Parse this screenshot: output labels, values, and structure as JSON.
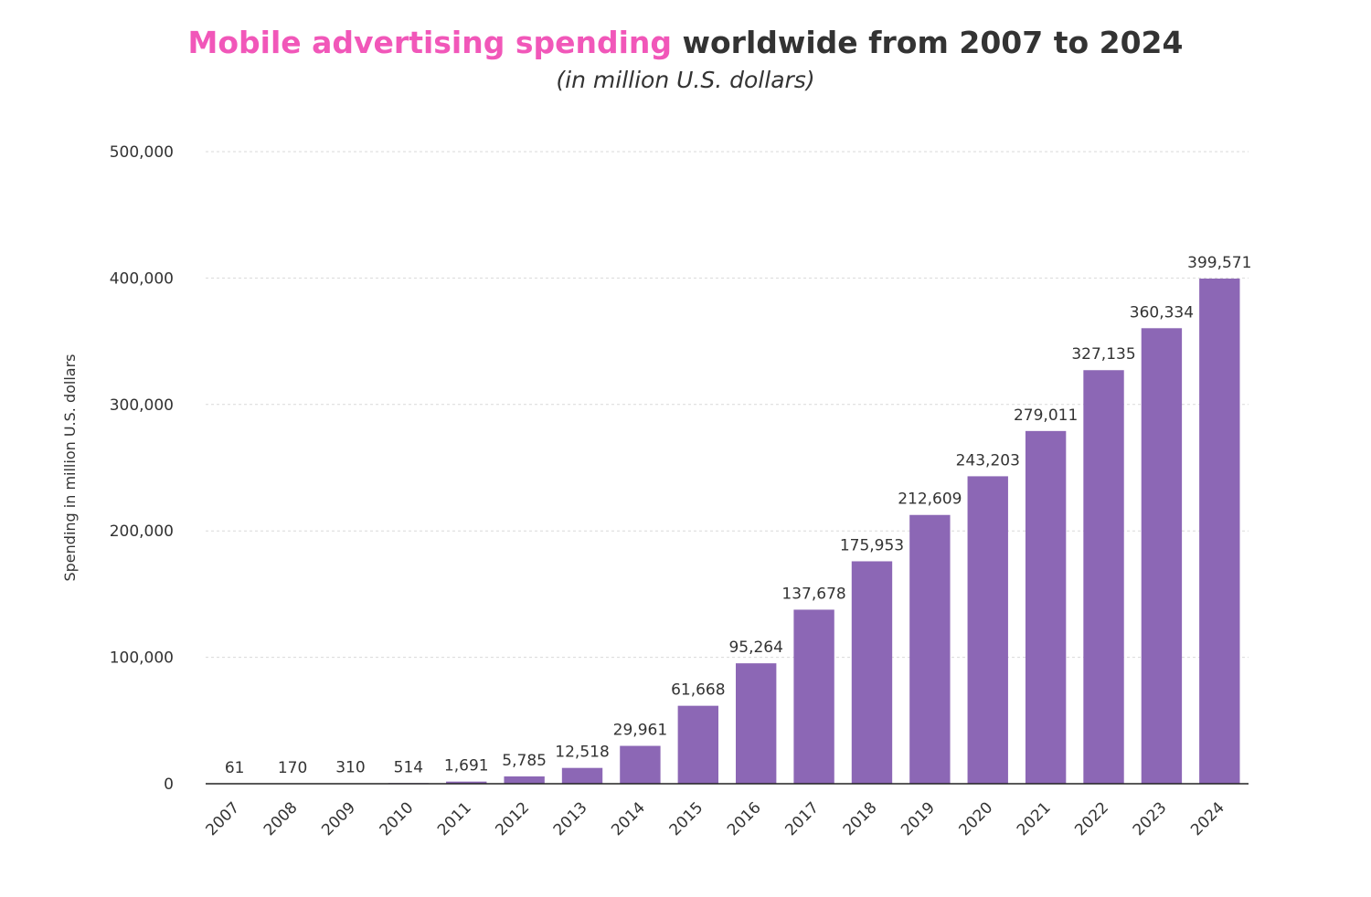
{
  "chart_data": {
    "type": "bar",
    "title_highlight": "Mobile advertising spending",
    "title_rest": " worldwide from 2007 to 2024",
    "subtitle": "(in million U.S. dollars)",
    "xlabel": "",
    "ylabel": "Spending in million U.S. dollars",
    "ylim": [
      0,
      500000
    ],
    "yticks": [
      0,
      100000,
      200000,
      300000,
      400000,
      500000
    ],
    "ytick_labels": [
      "0",
      "100,000",
      "200,000",
      "300,000",
      "400,000",
      "500,000"
    ],
    "grid": true,
    "bar_color": "#8c67b5",
    "highlight_color": "#f157b9",
    "categories": [
      "2007",
      "2008",
      "2009",
      "2010",
      "2011",
      "2012",
      "2013",
      "2014",
      "2015",
      "2016",
      "2017",
      "2018",
      "2019",
      "2020",
      "2021",
      "2022",
      "2023",
      "2024"
    ],
    "values": [
      61,
      170,
      310,
      514,
      1691,
      5785,
      12518,
      29961,
      61668,
      95264,
      137678,
      175953,
      212609,
      243203,
      279011,
      327135,
      360334,
      399571
    ],
    "value_labels": [
      "61",
      "170",
      "310",
      "514",
      "1,691",
      "5,785",
      "12,518",
      "29,961",
      "61,668",
      "95,264",
      "137,678",
      "175,953",
      "212,609",
      "243,203",
      "279,011",
      "327,135",
      "360,334",
      "399,571"
    ]
  }
}
